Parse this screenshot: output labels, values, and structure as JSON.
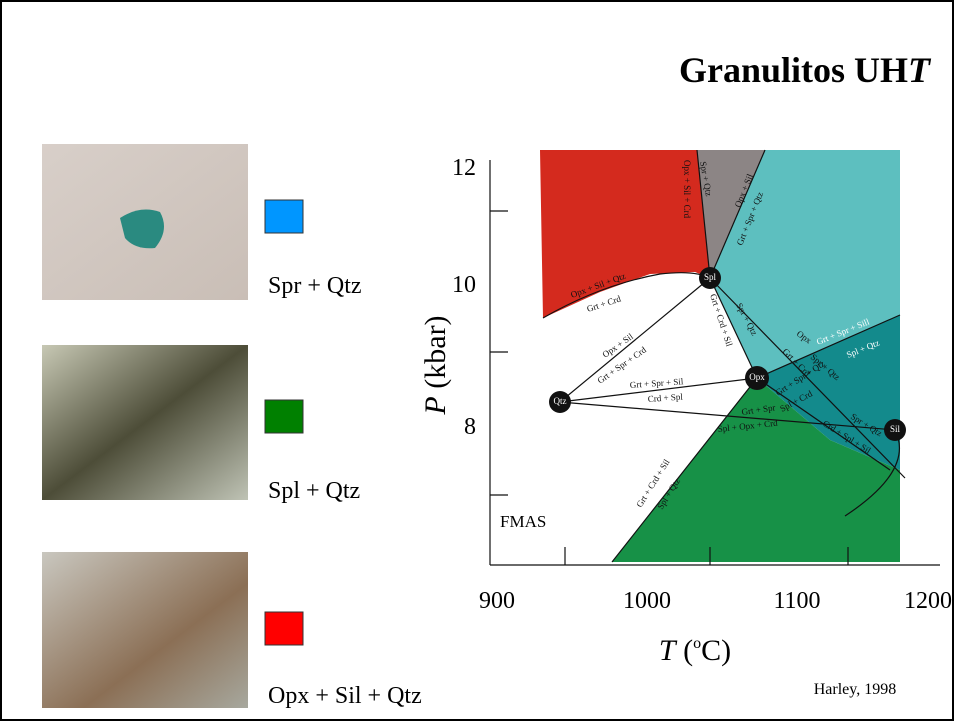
{
  "slide": {
    "title": {
      "text": "Granulitos UH",
      "italic": "T"
    },
    "legend": [
      {
        "label": "Spr + Qtz"
      },
      {
        "label": "Spl + Qtz"
      },
      {
        "label": "Opx + Sil + Qtz"
      }
    ],
    "diagram": {
      "y_axis_label": {
        "symbol": "P",
        "unit": "(kbar)"
      },
      "x_axis_label": {
        "symbol": "T",
        "open": "(",
        "degree": "o",
        "unit": "C)"
      },
      "y_tick_labels": [
        "12",
        "10",
        "8"
      ],
      "x_tick_labels": [
        "900",
        "1000",
        "1100",
        "1200"
      ],
      "points": [
        "Spl",
        "Opx",
        "Qtz",
        "Sil"
      ],
      "system": "FMAS",
      "reactions": [
        "Opx + Sil + Crd",
        "Spr + Qtz",
        "Opx + Sil",
        "Grt + Spr + Qtz",
        "Opx + Sil + Qtz",
        "Grt + Crd",
        "Opx + Sil",
        "Grt + Spr + Crd",
        "Grt + Spr + Sil",
        "Crd + Spl",
        "Grt + Crd + Sil",
        "Spr + Qtz",
        "Opx",
        "Grt + Spr + Sill",
        "Spl + Qtz",
        "Grt + Crd",
        "Spr + Qtz",
        "Grt + Spr + Qtz",
        "Spl + Crd",
        "Grt + Spr",
        "Spl + Opx + Crd",
        "Spr + Qtz",
        "Crd + Spl + Sil",
        "Grt + Crd + Sil",
        "Spl + Qtz"
      ]
    },
    "citation": "Harley, 1998"
  }
}
